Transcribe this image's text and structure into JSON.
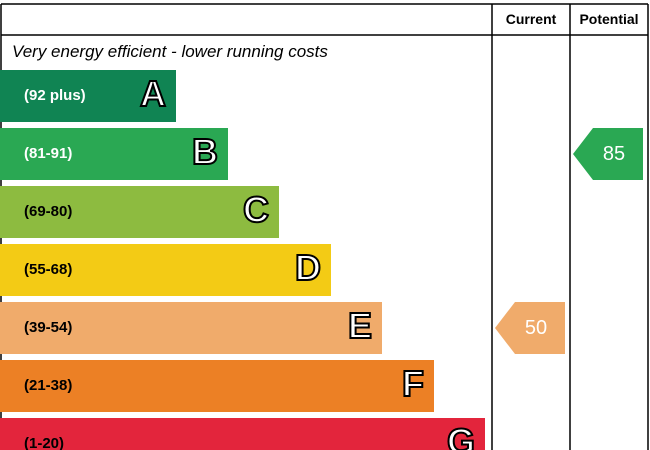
{
  "chart_data": {
    "type": "table",
    "columns": [
      "Current",
      "Potential"
    ],
    "subtitle": "Very energy efficient - lower running costs",
    "bands": [
      {
        "letter": "A",
        "range": "(92 plus)",
        "color": "#108453",
        "text_color": "#ffffff"
      },
      {
        "letter": "B",
        "range": "(81-91)",
        "color": "#2aa853",
        "text_color": "#ffffff"
      },
      {
        "letter": "C",
        "range": "(69-80)",
        "color": "#8dbb40",
        "text_color": "#000000"
      },
      {
        "letter": "D",
        "range": "(55-68)",
        "color": "#f3cb15",
        "text_color": "#000000"
      },
      {
        "letter": "E",
        "range": "(39-54)",
        "color": "#f0ab6b",
        "text_color": "#000000"
      },
      {
        "letter": "F",
        "range": "(21-38)",
        "color": "#ec8025",
        "text_color": "#000000"
      },
      {
        "letter": "G",
        "range": "(1-20)",
        "color": "#e3253c",
        "text_color": "#000000"
      }
    ],
    "current": {
      "value": 50,
      "band": "E",
      "color": "#f0ab6b"
    },
    "potential": {
      "value": 85,
      "band": "B",
      "color": "#2aa853"
    }
  }
}
